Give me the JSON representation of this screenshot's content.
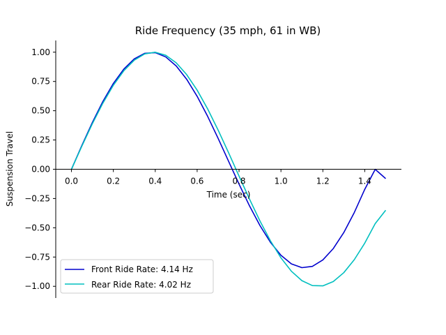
{
  "chart_data": {
    "type": "line",
    "title": "Ride Frequency (35 mph, 61 in WB)",
    "xlabel": "Time (sec)",
    "ylabel": "Suspension Travel",
    "xlim": [
      -0.075,
      1.575
    ],
    "ylim": [
      -1.1,
      1.1
    ],
    "xticks": [
      0.0,
      0.2,
      0.4,
      0.6,
      0.8,
      1.0,
      1.2,
      1.4
    ],
    "xtick_labels": [
      "0.0",
      "0.2",
      "0.4",
      "0.6",
      "0.8",
      "1.0",
      "1.2",
      "1.4"
    ],
    "yticks": [
      1.0,
      0.75,
      0.5,
      0.25,
      0.0,
      -0.25,
      -0.5,
      -0.75,
      -1.0
    ],
    "ytick_labels": [
      "1.00",
      "0.75",
      "0.50",
      "0.25",
      "0.00",
      "−0.25",
      "−0.50",
      "−0.75",
      "−1.00"
    ],
    "grid": false,
    "legend_position": "lower-left",
    "series": [
      {
        "name": "Front Ride Rate: 4.14 Hz",
        "color": "#0000cd",
        "x": [
          0.0,
          0.05,
          0.1,
          0.15,
          0.2,
          0.25,
          0.3,
          0.35,
          0.4,
          0.45,
          0.5,
          0.55,
          0.6,
          0.65,
          0.7,
          0.75,
          0.8,
          0.85,
          0.9,
          0.95,
          1.0,
          1.05,
          1.1,
          1.15,
          1.2,
          1.25,
          1.3,
          1.35,
          1.4,
          1.45,
          1.5
        ],
        "values": [
          0.0,
          0.2046,
          0.4003,
          0.5789,
          0.733,
          0.8561,
          0.9432,
          0.9905,
          0.9961,
          0.9595,
          0.8825,
          0.7686,
          0.6229,
          0.4521,
          0.2643,
          0.0681,
          -0.1272,
          -0.3133,
          -0.4815,
          -0.6242,
          -0.7349,
          -0.8083,
          -0.8406,
          -0.8296,
          -0.7747,
          -0.6774,
          -0.5408,
          -0.3702,
          -0.1718,
          -0.0008,
          -0.08
        ]
      },
      {
        "name": "Rear Ride Rate: 4.02 Hz",
        "color": "#00bfbf",
        "x": [
          0.0,
          0.05,
          0.1,
          0.15,
          0.2,
          0.25,
          0.3,
          0.35,
          0.4,
          0.45,
          0.5,
          0.55,
          0.6,
          0.65,
          0.7,
          0.75,
          0.8,
          0.85,
          0.9,
          0.95,
          1.0,
          1.05,
          1.1,
          1.15,
          1.2,
          1.25,
          1.3,
          1.35,
          1.4,
          1.45,
          1.5
        ],
        "values": [
          0.0,
          0.1987,
          0.3894,
          0.5646,
          0.7174,
          0.8415,
          0.932,
          0.9854,
          0.9996,
          0.9738,
          0.9093,
          0.8085,
          0.6755,
          0.5155,
          0.335,
          0.1411,
          -0.0584,
          -0.2555,
          -0.4425,
          -0.6119,
          -0.7568,
          -0.8716,
          -0.9516,
          -0.9937,
          -0.9962,
          -0.9589,
          -0.8835,
          -0.7728,
          -0.6313,
          -0.4646,
          -0.35
        ]
      }
    ]
  }
}
